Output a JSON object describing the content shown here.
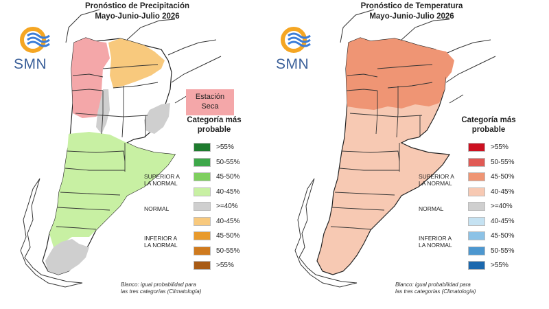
{
  "left": {
    "title_line1": "Pronóstico de Precipitación",
    "title_line2": "Mayo-Junio-Julio 2026",
    "logo_text": "SMN",
    "dry_season_label_line1": "Estación",
    "dry_season_label_line2": "Seca",
    "legend_title_line1": "Categoría más",
    "legend_title_line2": "probable",
    "categories": {
      "superior_line1": "SUPERIOR A",
      "superior_line2": "LA NORMAL",
      "normal": "NORMAL",
      "inferior_line1": "INFERIOR A",
      "inferior_line2": "LA NORMAL"
    },
    "legend_items": [
      {
        "label": ">55%",
        "color": "#1e7b2e"
      },
      {
        "label": "50-55%",
        "color": "#3ea84a"
      },
      {
        "label": "45-50%",
        "color": "#7ecf5e"
      },
      {
        "label": "40-45%",
        "color": "#c8f0a3"
      },
      {
        "label": ">=40%",
        "color": "#cfcfcf"
      },
      {
        "label": "40-45%",
        "color": "#f8c97d"
      },
      {
        "label": "45-50%",
        "color": "#e89a2c"
      },
      {
        "label": "50-55%",
        "color": "#cf7a1e"
      },
      {
        "label": ">55%",
        "color": "#a85a14"
      }
    ],
    "footnote_line1": "Blanco: igual probabilidad para",
    "footnote_line2": "las tres categorías (Climatología)",
    "map_colors": {
      "green": "#c8f0a3",
      "pink": "#f4a7a9",
      "orange": "#f8c97d",
      "gray": "#cfcfcf"
    }
  },
  "right": {
    "title_line1": "Pronóstico de Temperatura",
    "title_line2": "Mayo-Junio-Julio 2026",
    "logo_text": "SMN",
    "legend_title_line1": "Categoría más",
    "legend_title_line2": "probable",
    "categories": {
      "superior_line1": "SUPERIOR A",
      "superior_line2": "LA NORMAL",
      "normal": "NORMAL",
      "inferior_line1": "INFERIOR A",
      "inferior_line2": "LA NORMAL"
    },
    "legend_items": [
      {
        "label": ">55%",
        "color": "#cc1020"
      },
      {
        "label": "50-55%",
        "color": "#e05a55"
      },
      {
        "label": "45-50%",
        "color": "#ef9574"
      },
      {
        "label": "40-45%",
        "color": "#f7c9b3"
      },
      {
        "label": ">=40%",
        "color": "#cfcfcf"
      },
      {
        "label": "40-45%",
        "color": "#c5e2f2"
      },
      {
        "label": "45-50%",
        "color": "#8cc2e6"
      },
      {
        "label": "50-55%",
        "color": "#4d97cf"
      },
      {
        "label": ">55%",
        "color": "#1b68ae"
      }
    ],
    "footnote_line1": "Blanco: igual probabilidad para",
    "footnote_line2": "las tres categorías (Climatología)",
    "map_colors": {
      "north": "#ef9574",
      "south": "#f7c9b3"
    }
  }
}
